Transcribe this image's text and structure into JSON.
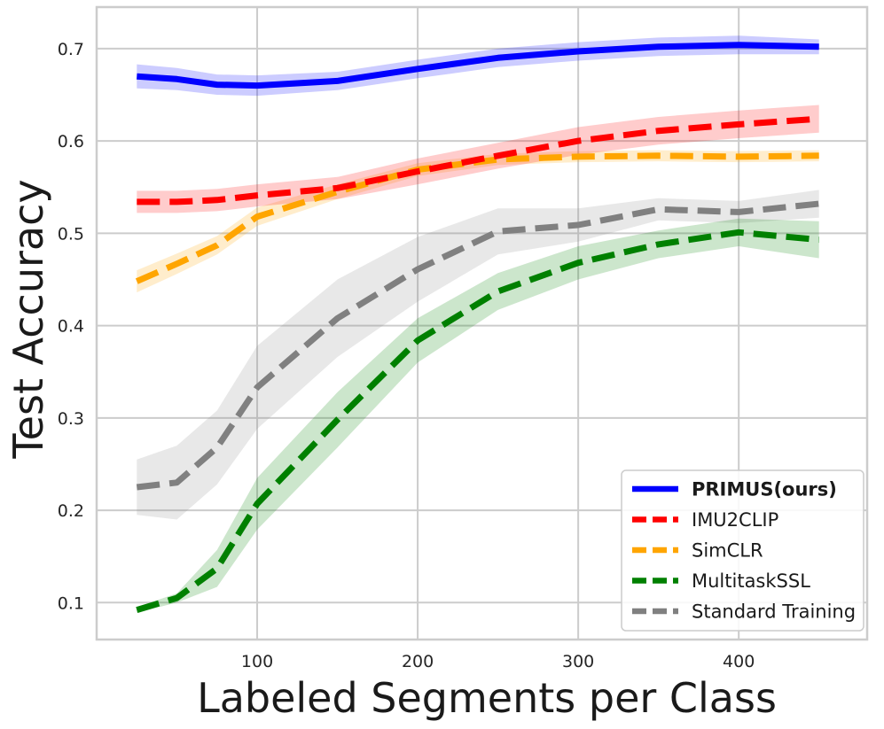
{
  "chart_data": {
    "type": "line",
    "title": "",
    "xlabel": "Labeled Segments per Class",
    "ylabel": "Test Accuracy",
    "xlim": [
      0,
      480
    ],
    "ylim": [
      0.06,
      0.745
    ],
    "xticks": [
      100,
      200,
      300,
      400
    ],
    "yticks": [
      0.1,
      0.2,
      0.3,
      0.4,
      0.5,
      0.6,
      0.7
    ],
    "xtick_labels": [
      "100",
      "200",
      "300",
      "400"
    ],
    "ytick_labels": [
      "0.1",
      "0.2",
      "0.3",
      "0.4",
      "0.5",
      "0.6",
      "0.7"
    ],
    "grid": true,
    "legend_position": "bottom-right",
    "x": [
      25,
      50,
      75,
      100,
      150,
      200,
      250,
      300,
      350,
      400,
      450
    ],
    "series": [
      {
        "name": "PRIMUS(ours)",
        "color": "#0000ff",
        "dashed": false,
        "bold": true,
        "values": [
          0.67,
          0.667,
          0.661,
          0.66,
          0.665,
          0.678,
          0.69,
          0.697,
          0.702,
          0.704,
          0.702
        ],
        "band": [
          0.013,
          0.012,
          0.011,
          0.011,
          0.01,
          0.01,
          0.01,
          0.01,
          0.01,
          0.01,
          0.008
        ]
      },
      {
        "name": "IMU2CLIP",
        "color": "#ff0000",
        "dashed": true,
        "bold": false,
        "values": [
          0.534,
          0.534,
          0.536,
          0.541,
          0.549,
          0.567,
          0.584,
          0.6,
          0.611,
          0.618,
          0.624
        ],
        "band": [
          0.012,
          0.012,
          0.012,
          0.012,
          0.012,
          0.014,
          0.014,
          0.015,
          0.015,
          0.015,
          0.015
        ]
      },
      {
        "name": "SimCLR",
        "color": "#ffa500",
        "dashed": true,
        "bold": false,
        "values": [
          0.448,
          0.467,
          0.487,
          0.518,
          0.545,
          0.569,
          0.58,
          0.583,
          0.584,
          0.583,
          0.584
        ],
        "band": [
          0.012,
          0.011,
          0.01,
          0.01,
          0.008,
          0.007,
          0.006,
          0.006,
          0.006,
          0.006,
          0.006
        ]
      },
      {
        "name": "MultitaskSSL",
        "color": "#008000",
        "dashed": true,
        "bold": false,
        "values": [
          0.092,
          0.105,
          0.137,
          0.207,
          0.298,
          0.384,
          0.437,
          0.468,
          0.488,
          0.501,
          0.493
        ],
        "band": [
          0.003,
          0.005,
          0.02,
          0.028,
          0.03,
          0.024,
          0.02,
          0.018,
          0.015,
          0.015,
          0.02
        ]
      },
      {
        "name": "Standard Training",
        "color": "#808080",
        "dashed": true,
        "bold": false,
        "values": [
          0.225,
          0.23,
          0.268,
          0.333,
          0.408,
          0.461,
          0.502,
          0.509,
          0.526,
          0.523,
          0.532
        ],
        "band": [
          0.03,
          0.04,
          0.04,
          0.045,
          0.042,
          0.035,
          0.025,
          0.018,
          0.012,
          0.012,
          0.015
        ]
      }
    ]
  }
}
